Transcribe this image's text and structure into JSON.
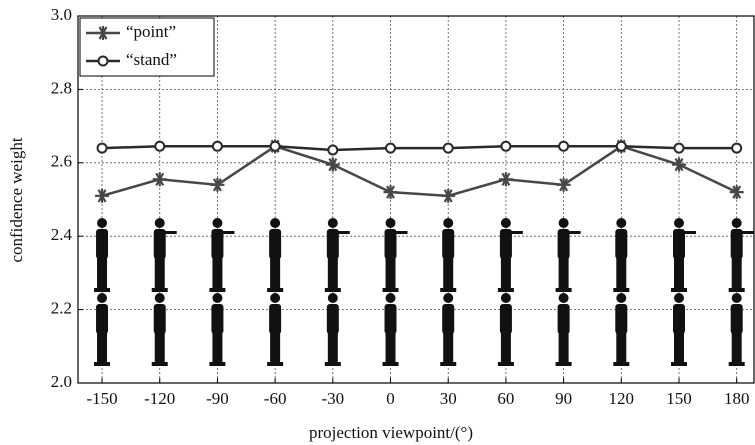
{
  "chart_data": {
    "type": "line",
    "x": [
      -150,
      -120,
      -90,
      -60,
      -30,
      0,
      30,
      60,
      90,
      120,
      150,
      180
    ],
    "series": [
      {
        "name": "“point”",
        "color": "#474747",
        "marker": "star",
        "values": [
          2.51,
          2.555,
          2.54,
          2.645,
          2.595,
          2.52,
          2.51,
          2.555,
          2.54,
          2.645,
          2.595,
          2.52
        ]
      },
      {
        "name": "“stand”",
        "color": "#2a2a2a",
        "marker": "circle",
        "values": [
          2.64,
          2.645,
          2.645,
          2.645,
          2.635,
          2.64,
          2.64,
          2.645,
          2.645,
          2.645,
          2.64,
          2.64
        ]
      }
    ],
    "xlabel": "projection viewpoint/(°)",
    "ylabel": "confidence weight",
    "xlim": [
      -162.5,
      189
    ],
    "ylim": [
      2.0,
      3.0
    ],
    "xticks": [
      -150,
      -120,
      -90,
      -60,
      -30,
      0,
      30,
      60,
      90,
      120,
      150,
      180
    ],
    "yticks": [
      {
        "value": 2.0,
        "label": "2.0"
      },
      2.2,
      2.4,
      2.6,
      2.8,
      {
        "value": 3.0,
        "label": "3.0"
      }
    ],
    "grid": true,
    "legend": "upper left"
  }
}
